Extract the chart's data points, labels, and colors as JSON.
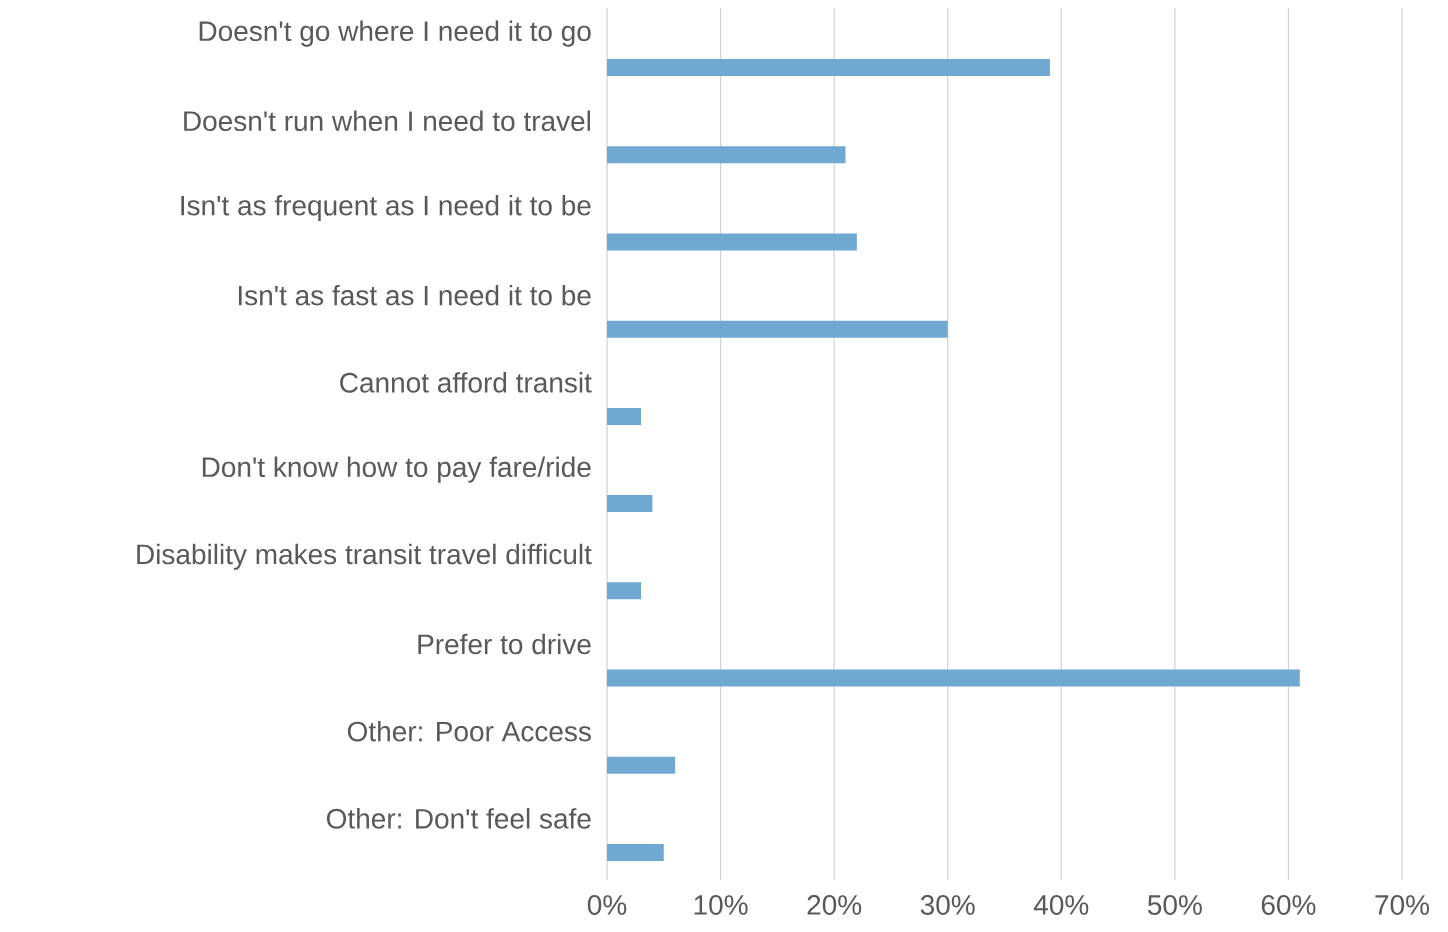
{
  "chart_data": {
    "type": "bar",
    "orientation": "horizontal",
    "categories": [
      "Doesn't go where I need it to go",
      "Doesn't run when I need to travel",
      "Isn't as frequent as I need it to be",
      "Isn't as fast as I need it to be",
      "Cannot afford transit",
      "Don't know how to pay fare/ride",
      "Disability makes transit travel difficult",
      "Prefer to drive",
      "Other: Poor Access",
      "Other: Don't feel safe"
    ],
    "values": [
      39,
      21,
      22,
      30,
      3,
      4,
      3,
      61,
      6,
      5
    ],
    "color": "#6fa8d0",
    "xlim": [
      0,
      70
    ],
    "xticks": [
      {
        "value": 0,
        "label": "0%"
      },
      {
        "value": 10,
        "label": "10%"
      },
      {
        "value": 20,
        "label": "20%"
      },
      {
        "value": 30,
        "label": "30%"
      },
      {
        "value": 40,
        "label": "40%"
      },
      {
        "value": 50,
        "label": "50%"
      },
      {
        "value": 60,
        "label": "60%"
      },
      {
        "value": 70,
        "label": "70%"
      }
    ],
    "grid": "x"
  }
}
